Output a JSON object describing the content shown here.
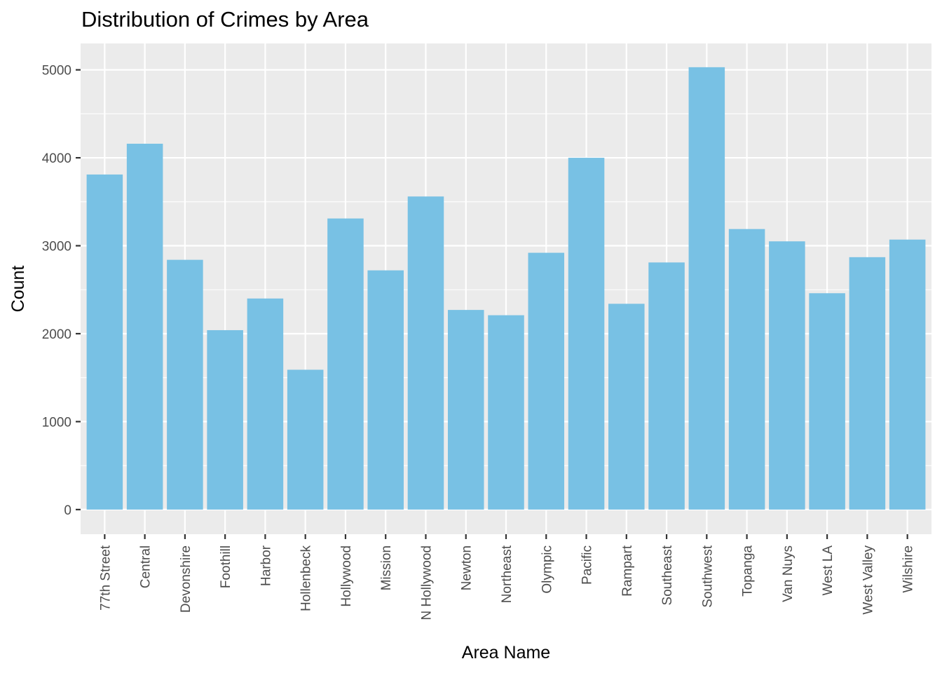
{
  "chart_data": {
    "type": "bar",
    "title": "Distribution of Crimes by Area",
    "xlabel": "Area Name",
    "ylabel": "Count",
    "ylim": [
      -280,
      5300
    ],
    "yticks": [
      0,
      1000,
      2000,
      3000,
      4000,
      5000
    ],
    "grid": true,
    "legend": "none",
    "bar_color": "#78c1e4",
    "panel_color": "#ebebeb",
    "categories": [
      "77th Street",
      "Central",
      "Devonshire",
      "Foothill",
      "Harbor",
      "Hollenbeck",
      "Hollywood",
      "Mission",
      "N Hollywood",
      "Newton",
      "Northeast",
      "Olympic",
      "Pacific",
      "Rampart",
      "Southeast",
      "Southwest",
      "Topanga",
      "Van Nuys",
      "West LA",
      "West Valley",
      "Wilshire"
    ],
    "values": [
      3810,
      4160,
      2840,
      2040,
      2400,
      1590,
      3310,
      2720,
      3560,
      2270,
      2210,
      2920,
      4000,
      2340,
      2810,
      5030,
      3190,
      3050,
      2460,
      2870,
      3070
    ]
  }
}
